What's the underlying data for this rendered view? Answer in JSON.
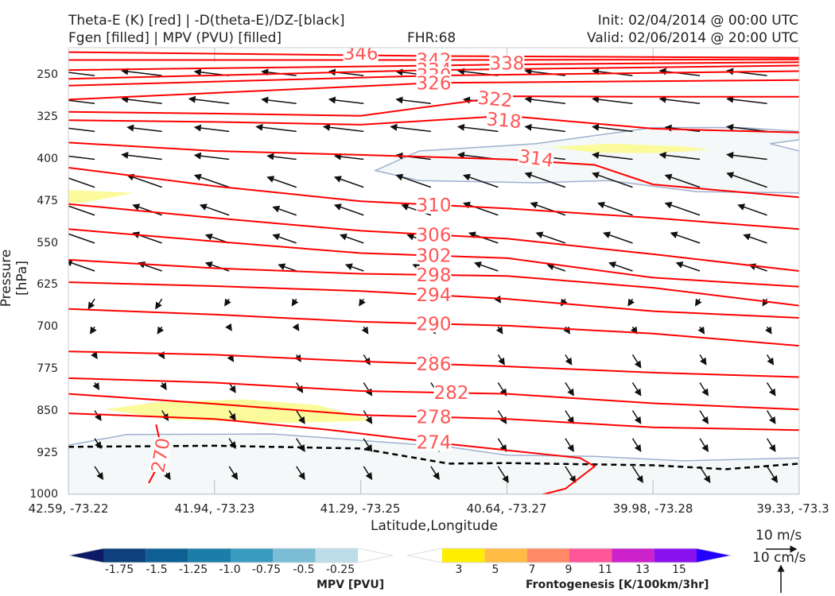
{
  "header": {
    "title_line1": "Theta-E (K) [red] | -D(theta-E)/DZ-[black]",
    "title_line2": "Fgen [filled] | MPV (PVU) [filled]",
    "fhr": "FHR:68",
    "init": "Init: 02/04/2014 @ 00:00 UTC",
    "valid": "Valid: 02/06/2014 @ 20:00 UTC"
  },
  "axes": {
    "ylabel": "Pressure [hPa]",
    "xlabel": "Latitude,Longitude",
    "y_ticks": [
      "250",
      "325",
      "400",
      "475",
      "550",
      "625",
      "700",
      "775",
      "850",
      "925",
      "1000"
    ],
    "x_ticks": [
      "42.59, -73.22",
      "41.94, -73.23",
      "41.29, -73.25",
      "40.64, -73.27",
      "39.98, -73.28",
      "39.33, -73.3"
    ]
  },
  "colorbars": {
    "mpv": {
      "title": "MPV [PVU]",
      "labels": [
        "-1.75",
        "-1.5",
        "-1.25",
        "-1.0",
        "-0.75",
        "-0.5",
        "-0.25"
      ],
      "colors": [
        "#0d1a66",
        "#0f3f7c",
        "#0e5f94",
        "#1a7ea8",
        "#3a9bc0",
        "#7bbdd5",
        "#bcdde8",
        "#ffffff"
      ]
    },
    "fgen": {
      "title": "Frontogenesis [K/100km/3hr]",
      "labels": [
        "3",
        "5",
        "7",
        "9",
        "11",
        "13",
        "15"
      ],
      "colors": [
        "#ffffff",
        "#ffee00",
        "#ffbb44",
        "#ff8866",
        "#ff5599",
        "#cc22cc",
        "#8811ee",
        "#2200ff"
      ]
    }
  },
  "reference_vectors": {
    "horizontal": "10 m/s",
    "vertical": "10 cm/s"
  },
  "colors": {
    "theta_e": "#ff0000",
    "theta_e_label": "#ff5555",
    "dthetadz": "#000000",
    "mpv_fill": "#f4f8f8",
    "mpv_edge": "#9fb0cf",
    "fgen_fill": "#fbfb9c",
    "wind": "#111111"
  },
  "chart_data": {
    "type": "cross-section",
    "x_range_index": [
      0,
      5
    ],
    "y_range_hpa": [
      200,
      1000
    ],
    "y_scale": "linear, inverted",
    "theta_e_contours": [
      {
        "level": 346,
        "label": "346",
        "points": [
          [
            0,
            208
          ],
          [
            2.5,
            215
          ],
          [
            5,
            218
          ]
        ]
      },
      {
        "level": 342,
        "label": "342",
        "points": [
          [
            0,
            222
          ],
          [
            2.5,
            222
          ],
          [
            5,
            221
          ]
        ]
      },
      {
        "level": 338,
        "label": "338",
        "points": [
          [
            0,
            240
          ],
          [
            2.5,
            232
          ],
          [
            3,
            230
          ],
          [
            5,
            226
          ]
        ]
      },
      {
        "level": 334,
        "label": "334",
        "points": [
          [
            0,
            256
          ],
          [
            2.5,
            240
          ],
          [
            5,
            232
          ]
        ]
      },
      {
        "level": 330,
        "label": "330",
        "points": [
          [
            0,
            268
          ],
          [
            2.5,
            250
          ],
          [
            5,
            242
          ]
        ]
      },
      {
        "level": 326,
        "label": "326",
        "points": [
          [
            0,
            293
          ],
          [
            2.5,
            263
          ],
          [
            5,
            258
          ]
        ]
      },
      {
        "level": 322,
        "label": "322",
        "points": [
          [
            0,
            315
          ],
          [
            1,
            318
          ],
          [
            2,
            322
          ],
          [
            3,
            287
          ],
          [
            4,
            288
          ],
          [
            5,
            288
          ]
        ]
      },
      {
        "level": 318,
        "label": "318",
        "points": [
          [
            0,
            330
          ],
          [
            1,
            333
          ],
          [
            2,
            338
          ],
          [
            3,
            322
          ],
          [
            4,
            345
          ],
          [
            5,
            352
          ]
        ]
      },
      {
        "level": 314,
        "label": "314",
        "points": [
          [
            0,
            370
          ],
          [
            1,
            385
          ],
          [
            2,
            392
          ],
          [
            3,
            400
          ],
          [
            3.6,
            410
          ],
          [
            4,
            445
          ],
          [
            5,
            468
          ]
        ]
      },
      {
        "level": 310,
        "label": "310",
        "points": [
          [
            0,
            415
          ],
          [
            1,
            448
          ],
          [
            2,
            475
          ],
          [
            3,
            488
          ],
          [
            4,
            505
          ],
          [
            5,
            525
          ]
        ]
      },
      {
        "level": 306,
        "label": "306",
        "points": [
          [
            0,
            480
          ],
          [
            1,
            505
          ],
          [
            2,
            528
          ],
          [
            3,
            542
          ],
          [
            4,
            570
          ],
          [
            5,
            600
          ]
        ]
      },
      {
        "level": 302,
        "label": "302",
        "points": [
          [
            0,
            525
          ],
          [
            1,
            547
          ],
          [
            2,
            568
          ],
          [
            3,
            577
          ],
          [
            4,
            612
          ],
          [
            5,
            628
          ]
        ]
      },
      {
        "level": 298,
        "label": "298",
        "points": [
          [
            0,
            580
          ],
          [
            1,
            595
          ],
          [
            2,
            605
          ],
          [
            3,
            609
          ],
          [
            4,
            630
          ],
          [
            5,
            662
          ]
        ]
      },
      {
        "level": 294,
        "label": "294",
        "points": [
          [
            0,
            620
          ],
          [
            1,
            627
          ],
          [
            2,
            636
          ],
          [
            3,
            650
          ],
          [
            4,
            672
          ],
          [
            5,
            684
          ]
        ]
      },
      {
        "level": 290,
        "label": "290",
        "points": [
          [
            0,
            668
          ],
          [
            1,
            678
          ],
          [
            2,
            691
          ],
          [
            3,
            698
          ],
          [
            4,
            712
          ],
          [
            5,
            734
          ]
        ]
      },
      {
        "level": 286,
        "label": "286",
        "points": [
          [
            0,
            744
          ],
          [
            1,
            750
          ],
          [
            2,
            762
          ],
          [
            3,
            771
          ],
          [
            4,
            782
          ],
          [
            5,
            790
          ]
        ]
      },
      {
        "level": 282,
        "label": "282",
        "points": [
          [
            0,
            792
          ],
          [
            1,
            800
          ],
          [
            2,
            815
          ],
          [
            3,
            820
          ],
          [
            4,
            837
          ],
          [
            5,
            848
          ]
        ]
      },
      {
        "level": 278,
        "label": "278",
        "points": [
          [
            0,
            820
          ],
          [
            1,
            838
          ],
          [
            2,
            858
          ],
          [
            3,
            865
          ],
          [
            4,
            880
          ],
          [
            5,
            885
          ]
        ]
      },
      {
        "level": 274,
        "label": "274",
        "points": [
          [
            0,
            855
          ],
          [
            1,
            865
          ],
          [
            1.8,
            885
          ],
          [
            2.6,
            910
          ],
          [
            3.5,
            935
          ],
          [
            3.6,
            950
          ],
          [
            3.4,
            990
          ],
          [
            3.1,
            1010
          ]
        ]
      },
      {
        "level": 270,
        "label": "270",
        "points": [
          [
            0.55,
            980
          ],
          [
            0.6,
            955
          ],
          [
            0.63,
            910
          ],
          [
            0.6,
            875
          ]
        ]
      }
    ],
    "dthetadz_zero_line": [
      [
        0,
        915
      ],
      [
        1,
        913
      ],
      [
        2,
        918
      ],
      [
        2.6,
        945
      ],
      [
        3,
        944
      ],
      [
        4,
        948
      ],
      [
        4.5,
        955
      ],
      [
        5,
        945
      ]
    ],
    "mpv_negative_regions": [
      {
        "level": "-0.25",
        "points": [
          [
            2.1,
            420
          ],
          [
            2.4,
            385
          ],
          [
            3.2,
            372
          ],
          [
            4,
            343
          ],
          [
            4.6,
            343
          ],
          [
            5,
            350
          ],
          [
            5,
            365
          ],
          [
            4.8,
            372
          ],
          [
            5,
            385
          ],
          [
            5,
            460
          ],
          [
            4.3,
            458
          ],
          [
            3.7,
            438
          ],
          [
            3.2,
            442
          ],
          [
            2.4,
            438
          ]
        ]
      },
      {
        "level": "-0.25",
        "points": [
          [
            0,
            912
          ],
          [
            0.4,
            893
          ],
          [
            1.4,
            892
          ],
          [
            2.6,
            915
          ],
          [
            3,
            930
          ],
          [
            3.6,
            932
          ],
          [
            4.2,
            940
          ],
          [
            5,
            935
          ],
          [
            5,
            1000
          ],
          [
            0,
            1000
          ]
        ]
      }
    ],
    "fgen_positive_regions": [
      {
        "level": "3",
        "points": [
          [
            3.3,
            378
          ],
          [
            3.7,
            372
          ],
          [
            4.2,
            377
          ],
          [
            4.4,
            383
          ],
          [
            4.0,
            389
          ],
          [
            3.6,
            388
          ]
        ]
      },
      {
        "level": "3",
        "points": [
          [
            0,
            455
          ],
          [
            0.45,
            460
          ],
          [
            0.1,
            478
          ],
          [
            0,
            478
          ]
        ]
      },
      {
        "level": "3",
        "points": [
          [
            0.25,
            848
          ],
          [
            0.6,
            835
          ],
          [
            1.2,
            830
          ],
          [
            1.7,
            840
          ],
          [
            2.1,
            868
          ],
          [
            1.5,
            872
          ],
          [
            0.7,
            866
          ]
        ]
      }
    ],
    "wind_vectors": [
      {
        "p": 250,
        "u": [
          -0.8,
          -0.6,
          -0.5,
          -0.5,
          -0.5,
          -0.5,
          -0.6,
          -0.6,
          -0.6,
          -0.6,
          -0.6
        ]
      },
      {
        "p": 300,
        "u": [
          -0.7,
          -0.6,
          -0.6,
          -0.5,
          -0.5,
          -0.5,
          -0.5,
          -0.6,
          -0.6,
          -0.6,
          -0.6
        ]
      },
      {
        "p": 350,
        "u": [
          -0.6,
          -0.5,
          -0.5,
          -0.6,
          -0.6,
          -0.6,
          -0.6,
          -0.6,
          -0.6,
          -0.5,
          -0.6
        ]
      },
      {
        "p": 400,
        "u": [
          -0.7,
          -0.6,
          -0.5,
          -0.4,
          -0.4,
          -0.5,
          -0.6,
          -0.6,
          -0.6,
          -0.6,
          -0.6
        ]
      },
      {
        "p": 450,
        "u": [
          -0.5,
          -0.5,
          -0.5,
          -0.4,
          -0.4,
          -0.5,
          -0.5,
          -0.6,
          -0.6,
          -0.5,
          -0.6
        ]
      },
      {
        "p": 500,
        "u": [
          -0.6,
          -0.4,
          -0.4,
          -0.3,
          -0.4,
          -0.4,
          -0.5,
          -0.5,
          -0.5,
          -0.5,
          -0.4
        ]
      },
      {
        "p": 550,
        "u": [
          -0.5,
          -0.4,
          -0.3,
          -0.3,
          -0.3,
          -0.3,
          -0.4,
          -0.4,
          -0.4,
          -0.4,
          -0.3
        ]
      },
      {
        "p": 600,
        "u": [
          -0.4,
          -0.3,
          -0.3,
          -0.2,
          -0.2,
          -0.2,
          -0.3,
          -0.2,
          -0.3,
          -0.3,
          -0.2
        ]
      },
      {
        "p": 650,
        "u": [
          -0.2,
          -0.2,
          -0.1,
          -0.1,
          -0.1,
          0.0,
          0.0,
          -0.1,
          -0.1,
          -0.1,
          -0.1
        ]
      },
      {
        "p": 700,
        "u": [
          -0.1,
          -0.1,
          0.0,
          0.0,
          0.1,
          0.1,
          0.1,
          0.1,
          0.1,
          0.1,
          0.1
        ]
      },
      {
        "p": 750,
        "u": [
          0.0,
          0.0,
          0.1,
          0.1,
          0.2,
          0.2,
          0.2,
          0.2,
          0.3,
          0.2,
          0.2
        ]
      },
      {
        "p": 800,
        "u": [
          0.1,
          0.1,
          0.2,
          0.2,
          0.3,
          0.3,
          0.3,
          0.3,
          0.3,
          0.3,
          0.3
        ]
      },
      {
        "p": 850,
        "u": [
          0.2,
          0.2,
          0.2,
          0.3,
          0.3,
          0.3,
          0.3,
          0.3,
          0.3,
          0.3,
          0.3
        ]
      },
      {
        "p": 900,
        "u": [
          0.2,
          0.2,
          0.2,
          0.3,
          0.3,
          0.3,
          0.3,
          0.3,
          0.3,
          0.3,
          0.3
        ]
      },
      {
        "p": 950,
        "u": [
          0.3,
          0.3,
          0.3,
          0.3,
          0.3,
          0.3,
          0.4,
          0.4,
          0.4,
          0.4,
          0.4
        ]
      }
    ]
  }
}
